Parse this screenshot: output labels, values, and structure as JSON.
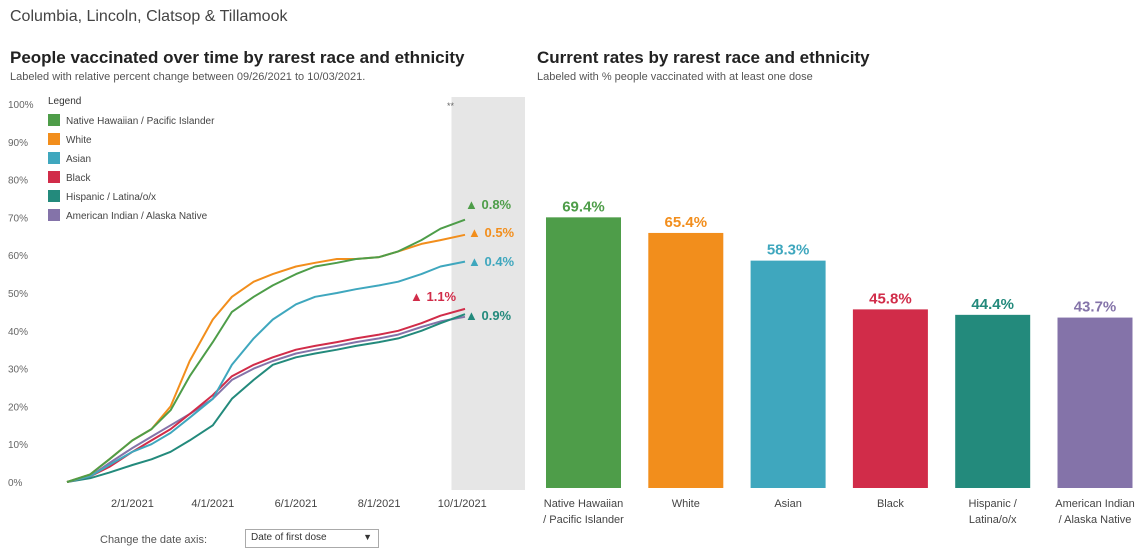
{
  "page": {
    "title": "Columbia, Lincoln, Clatsop & Tillamook"
  },
  "left_chart": {
    "title": "People vaccinated over time by rarest race and ethnicity",
    "subtitle": "Labeled with relative percent change between 09/26/2021 to 10/03/2021.",
    "legend_title": "Legend",
    "corner_mark": "**"
  },
  "right_chart": {
    "title": "Current rates by rarest race and ethnicity",
    "subtitle": "Labeled with % people vaccinated with at least one dose"
  },
  "controls": {
    "date_axis_label": "Change the date axis:",
    "date_axis_value": "Date of first dose"
  },
  "colors": {
    "nhpi": "#4e9d49",
    "white": "#f28e1c",
    "asian": "#3fa7be",
    "black": "#d12c49",
    "hispanic": "#238a7c",
    "aian": "#8473a9",
    "shade": "#e6e6e6"
  },
  "chart_data": [
    {
      "type": "line",
      "ylim": [
        0,
        100
      ],
      "yticks": [
        "0%",
        "10%",
        "20%",
        "30%",
        "40%",
        "50%",
        "60%",
        "70%",
        "80%",
        "90%",
        "100%"
      ],
      "yvals": [
        0,
        10,
        20,
        30,
        40,
        50,
        60,
        70,
        80,
        90,
        100
      ],
      "xticks": [
        "2/1/2021",
        "4/1/2021",
        "6/1/2021",
        "8/1/2021",
        "10/1/2021"
      ],
      "xtick_vals": [
        "2021-02-01",
        "2021-04-01",
        "2021-06-01",
        "2021-08-01",
        "2021-10-01"
      ],
      "xlim": [
        "2020-12-15",
        "2021-10-03"
      ],
      "highlight_range": [
        "2021-09-26",
        "2021-10-03"
      ],
      "legend_position": "top-left",
      "grid": false,
      "series": [
        {
          "name": "Native Hawaiian / Pacific Islander",
          "color_key": "nhpi",
          "end_label": "▲ 0.8%",
          "x": [
            "2020-12-15",
            "2021-01-01",
            "2021-01-15",
            "2021-02-01",
            "2021-02-15",
            "2021-03-01",
            "2021-03-15",
            "2021-04-01",
            "2021-04-15",
            "2021-05-01",
            "2021-05-15",
            "2021-06-01",
            "2021-06-15",
            "2021-07-01",
            "2021-07-15",
            "2021-08-01",
            "2021-08-15",
            "2021-09-01",
            "2021-09-15",
            "2021-10-03"
          ],
          "y": [
            0,
            2,
            6,
            11,
            14,
            19,
            28,
            37,
            45,
            49,
            52,
            55,
            57,
            58,
            59,
            59.5,
            61,
            64,
            67,
            69.4
          ]
        },
        {
          "name": "White",
          "color_key": "white",
          "end_label": "▲ 0.5%",
          "x": [
            "2020-12-15",
            "2021-01-01",
            "2021-01-15",
            "2021-02-01",
            "2021-02-15",
            "2021-03-01",
            "2021-03-15",
            "2021-04-01",
            "2021-04-15",
            "2021-05-01",
            "2021-05-15",
            "2021-06-01",
            "2021-06-15",
            "2021-07-01",
            "2021-07-15",
            "2021-08-01",
            "2021-08-15",
            "2021-09-01",
            "2021-09-15",
            "2021-10-03"
          ],
          "y": [
            0,
            2,
            6,
            11,
            14,
            20,
            32,
            43,
            49,
            53,
            55,
            57,
            58,
            59,
            59,
            59.5,
            61,
            63,
            64,
            65.4
          ]
        },
        {
          "name": "Asian",
          "color_key": "asian",
          "end_label": "▲ 0.4%",
          "x": [
            "2020-12-15",
            "2021-01-01",
            "2021-01-15",
            "2021-02-01",
            "2021-02-15",
            "2021-03-01",
            "2021-03-15",
            "2021-04-01",
            "2021-04-15",
            "2021-05-01",
            "2021-05-15",
            "2021-06-01",
            "2021-06-15",
            "2021-07-01",
            "2021-07-15",
            "2021-08-01",
            "2021-08-15",
            "2021-09-01",
            "2021-09-15",
            "2021-10-03"
          ],
          "y": [
            0,
            1.5,
            4.5,
            8,
            10,
            13,
            17,
            22,
            31,
            38,
            43,
            47,
            49,
            50,
            51,
            52,
            53,
            55,
            57,
            58.3
          ]
        },
        {
          "name": "Black",
          "color_key": "black",
          "end_label": "▲ 1.1%",
          "x": [
            "2020-12-15",
            "2021-01-01",
            "2021-01-15",
            "2021-02-01",
            "2021-02-15",
            "2021-03-01",
            "2021-03-15",
            "2021-04-01",
            "2021-04-15",
            "2021-05-01",
            "2021-05-15",
            "2021-06-01",
            "2021-06-15",
            "2021-07-01",
            "2021-07-15",
            "2021-08-01",
            "2021-08-15",
            "2021-09-01",
            "2021-09-15",
            "2021-10-03"
          ],
          "y": [
            0,
            1.5,
            4,
            8,
            11,
            14,
            18,
            23,
            28,
            31,
            33,
            35,
            36,
            37,
            38,
            39,
            40,
            42,
            44,
            45.8
          ]
        },
        {
          "name": "Hispanic / Latina/o/x",
          "color_key": "hispanic",
          "end_label": "▲ 0.9%",
          "x": [
            "2020-12-15",
            "2021-01-01",
            "2021-01-15",
            "2021-02-01",
            "2021-02-15",
            "2021-03-01",
            "2021-03-15",
            "2021-04-01",
            "2021-04-15",
            "2021-05-01",
            "2021-05-15",
            "2021-06-01",
            "2021-06-15",
            "2021-07-01",
            "2021-07-15",
            "2021-08-01",
            "2021-08-15",
            "2021-09-01",
            "2021-09-15",
            "2021-10-03"
          ],
          "y": [
            0,
            1,
            2.5,
            4.5,
            6,
            8,
            11,
            15,
            22,
            27,
            31,
            33,
            34,
            35,
            36,
            37,
            38,
            40,
            42,
            44.4
          ]
        },
        {
          "name": "American Indian / Alaska Native",
          "color_key": "aian",
          "end_label": "",
          "x": [
            "2020-12-15",
            "2021-01-01",
            "2021-01-15",
            "2021-02-01",
            "2021-02-15",
            "2021-03-01",
            "2021-03-15",
            "2021-04-01",
            "2021-04-15",
            "2021-05-01",
            "2021-05-15",
            "2021-06-01",
            "2021-06-15",
            "2021-07-01",
            "2021-07-15",
            "2021-08-01",
            "2021-08-15",
            "2021-09-01",
            "2021-09-15",
            "2021-10-03"
          ],
          "y": [
            0,
            1.5,
            5,
            9,
            12,
            15,
            18,
            22,
            27,
            30,
            32,
            34,
            35,
            36,
            37,
            38,
            39,
            41,
            42.5,
            43.7
          ]
        }
      ]
    },
    {
      "type": "bar",
      "categories": [
        [
          "Native Hawaiian",
          "/ Pacific Islander"
        ],
        [
          "White"
        ],
        [
          "Asian"
        ],
        [
          "Black"
        ],
        [
          "Hispanic /",
          "Latina/o/x"
        ],
        [
          "American Indian",
          "/ Alaska Native"
        ]
      ],
      "values": [
        69.4,
        65.4,
        58.3,
        45.8,
        44.4,
        43.7
      ],
      "labels": [
        "69.4%",
        "65.4%",
        "58.3%",
        "45.8%",
        "44.4%",
        "43.7%"
      ],
      "color_keys": [
        "nhpi",
        "white",
        "asian",
        "black",
        "hispanic",
        "aian"
      ],
      "ylim": [
        0,
        100
      ]
    }
  ]
}
